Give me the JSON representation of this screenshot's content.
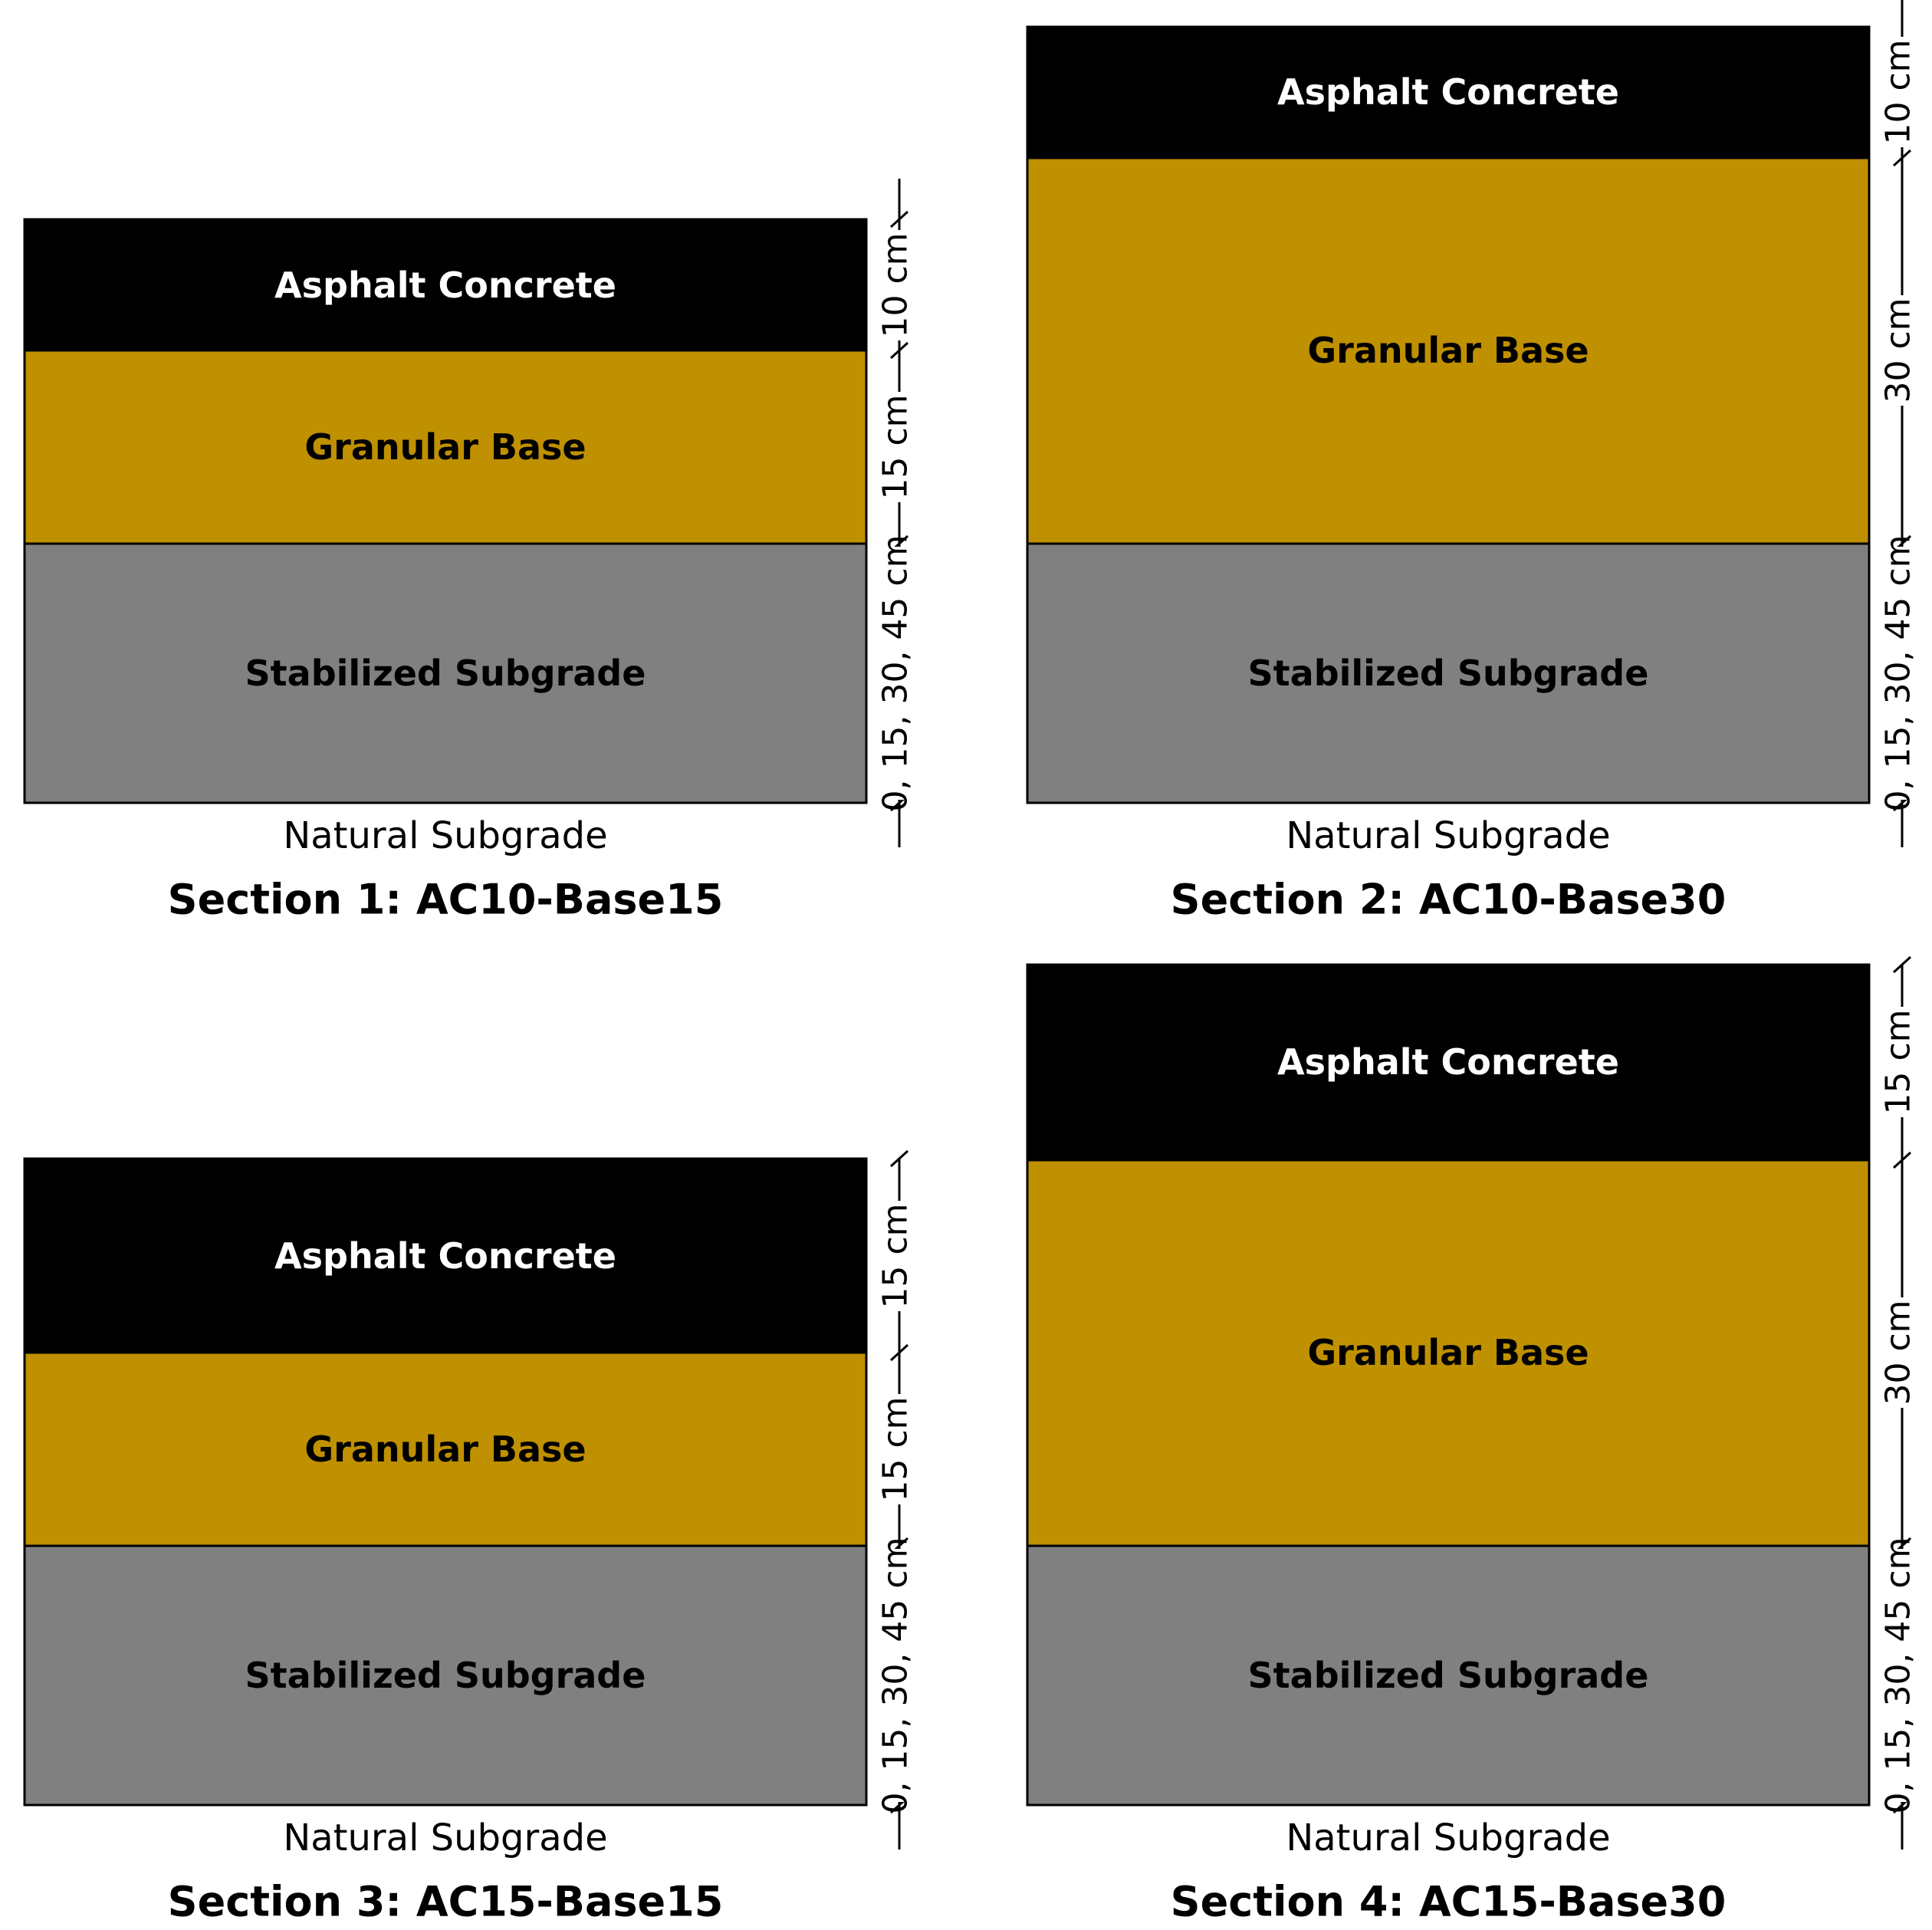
{
  "colors": {
    "asphalt": "#000000",
    "granular": "#BF9000",
    "stabilized": "#808080",
    "asphalt_text": "#FFFFFF",
    "layer_text": "#000000"
  },
  "sections": [
    {
      "title": "Section 1: AC10-Base15",
      "natural_subgrade_label": "Natural Subgrade",
      "layers": [
        {
          "name": "Asphalt Concrete",
          "thickness_label": "10 cm",
          "type": "asphalt"
        },
        {
          "name": "Granular Base",
          "thickness_label": "15 cm",
          "type": "granular"
        },
        {
          "name": "Stabilized Subgrade",
          "thickness_label": "0, 15, 30, 45 cm",
          "type": "stabilized"
        }
      ]
    },
    {
      "title": "Section 2: AC10-Base30",
      "natural_subgrade_label": "Natural Subgrade",
      "layers": [
        {
          "name": "Asphalt Concrete",
          "thickness_label": "10 cm",
          "type": "asphalt"
        },
        {
          "name": "Granular Base",
          "thickness_label": "30 cm",
          "type": "granular"
        },
        {
          "name": "Stabilized Subgrade",
          "thickness_label": "0, 15, 30, 45 cm",
          "type": "stabilized"
        }
      ]
    },
    {
      "title": "Section 3: AC15-Base15",
      "natural_subgrade_label": "Natural Subgrade",
      "layers": [
        {
          "name": "Asphalt Concrete",
          "thickness_label": "15 cm",
          "type": "asphalt"
        },
        {
          "name": "Granular Base",
          "thickness_label": "15 cm",
          "type": "granular"
        },
        {
          "name": "Stabilized Subgrade",
          "thickness_label": "0, 15, 30, 45 cm",
          "type": "stabilized"
        }
      ]
    },
    {
      "title": "Section 4: AC15-Base30",
      "natural_subgrade_label": "Natural Subgrade",
      "layers": [
        {
          "name": "Asphalt Concrete",
          "thickness_label": "15 cm",
          "type": "asphalt"
        },
        {
          "name": "Granular Base",
          "thickness_label": "30 cm",
          "type": "granular"
        },
        {
          "name": "Stabilized Subgrade",
          "thickness_label": "0, 15, 30, 45 cm",
          "type": "stabilized"
        }
      ]
    }
  ]
}
